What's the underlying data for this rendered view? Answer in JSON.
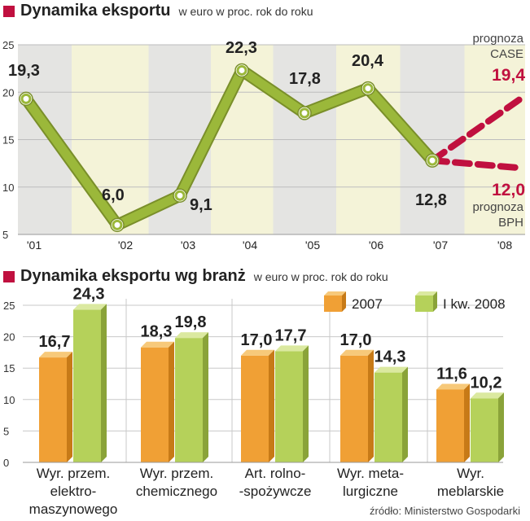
{
  "chart_data": [
    {
      "type": "line",
      "title": "Dynamika eksportu",
      "subtitle": "w euro w proc. rok do roku",
      "categories": [
        "'01",
        "'02",
        "'03",
        "'04",
        "'05",
        "'06",
        "'07",
        "'08"
      ],
      "series": [
        {
          "values": [
            19.3,
            6.0,
            9.1,
            22.3,
            17.8,
            20.4,
            12.8,
            null
          ],
          "labels": [
            "19,3",
            "6,0",
            "9,1",
            "22,3",
            "17,8",
            "20,4",
            "12,8",
            ""
          ]
        }
      ],
      "forecasts": [
        {
          "name_line1": "prognoza",
          "name_line2": "CASE",
          "from": 12.8,
          "value": 19.4,
          "label": "19,4"
        },
        {
          "name_line1": "prognoza",
          "name_line2": "BPH",
          "from": 12.8,
          "value": 12.0,
          "label": "12,0"
        }
      ],
      "yticks": [
        "5",
        "10",
        "15",
        "20",
        "25"
      ],
      "ylim": [
        5,
        25
      ],
      "grid": true
    },
    {
      "type": "bar",
      "title": "Dynamika eksportu wg branż",
      "subtitle": "w euro w proc. rok do roku",
      "categories": [
        [
          "Wyr. przem.",
          "elektro-",
          "maszynowego"
        ],
        [
          "Wyr. przem.",
          "chemicznego"
        ],
        [
          "Art. rolno-",
          "-spożywcze"
        ],
        [
          "Wyr. meta-",
          "lurgiczne"
        ],
        [
          "Wyr.",
          "meblarskie"
        ]
      ],
      "series": [
        {
          "name": "2007",
          "values": [
            16.7,
            18.3,
            17.0,
            17.0,
            11.6
          ],
          "labels": [
            "16,7",
            "18,3",
            "17,0",
            "17,0",
            "11,6"
          ]
        },
        {
          "name": "I kw. 2008",
          "values": [
            24.3,
            19.8,
            17.7,
            14.3,
            10.2
          ],
          "labels": [
            "24,3",
            "19,8",
            "17,7",
            "14,3",
            "10,2"
          ]
        }
      ],
      "yticks": [
        "0",
        "5",
        "10",
        "15",
        "20",
        "25"
      ],
      "ylim": [
        0,
        25
      ],
      "grid": true,
      "legend": "top-right"
    }
  ],
  "source": "źródło: Ministerstwo Gospodarki",
  "colors": {
    "accent": "#c0103f",
    "line": "#9bb83a",
    "bar2007": "#f0a035",
    "bar2008": "#b5d15a",
    "band_yellow": "#f4f3d8",
    "band_gray": "#e4e4e2"
  }
}
